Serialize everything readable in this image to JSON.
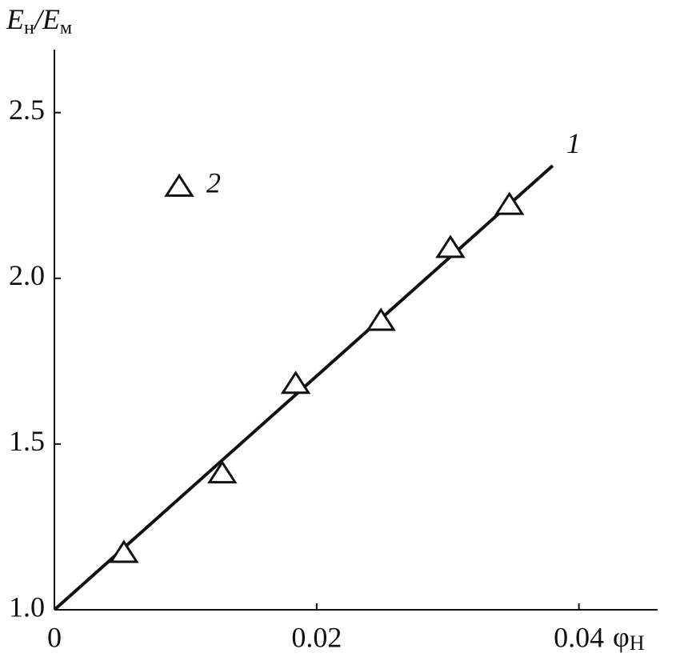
{
  "chart_data": {
    "type": "line",
    "ylabel": [
      "E",
      "н",
      "/E",
      "м"
    ],
    "xlabel": [
      "φ",
      "H"
    ],
    "xlim": [
      0,
      0.046
    ],
    "ylim": [
      1.0,
      2.69
    ],
    "xticks": [
      0,
      0.02,
      0.04
    ],
    "yticks": [
      {
        "value": 1.0,
        "label": "1.0"
      },
      1.5,
      {
        "value": 2.0,
        "label": "2.0"
      },
      2.5
    ],
    "series": [
      {
        "name": "1",
        "type": "line",
        "color": "#111111",
        "x": [
          0,
          0.038
        ],
        "values": [
          1.0,
          2.34
        ]
      },
      {
        "name": "2",
        "type": "scatter",
        "color": "#111111",
        "x": [
          0.0053,
          0.0128,
          0.0184,
          0.0249,
          0.0302,
          0.0347
        ],
        "values": [
          1.17,
          1.41,
          1.68,
          1.87,
          2.09,
          2.22
        ]
      }
    ]
  }
}
